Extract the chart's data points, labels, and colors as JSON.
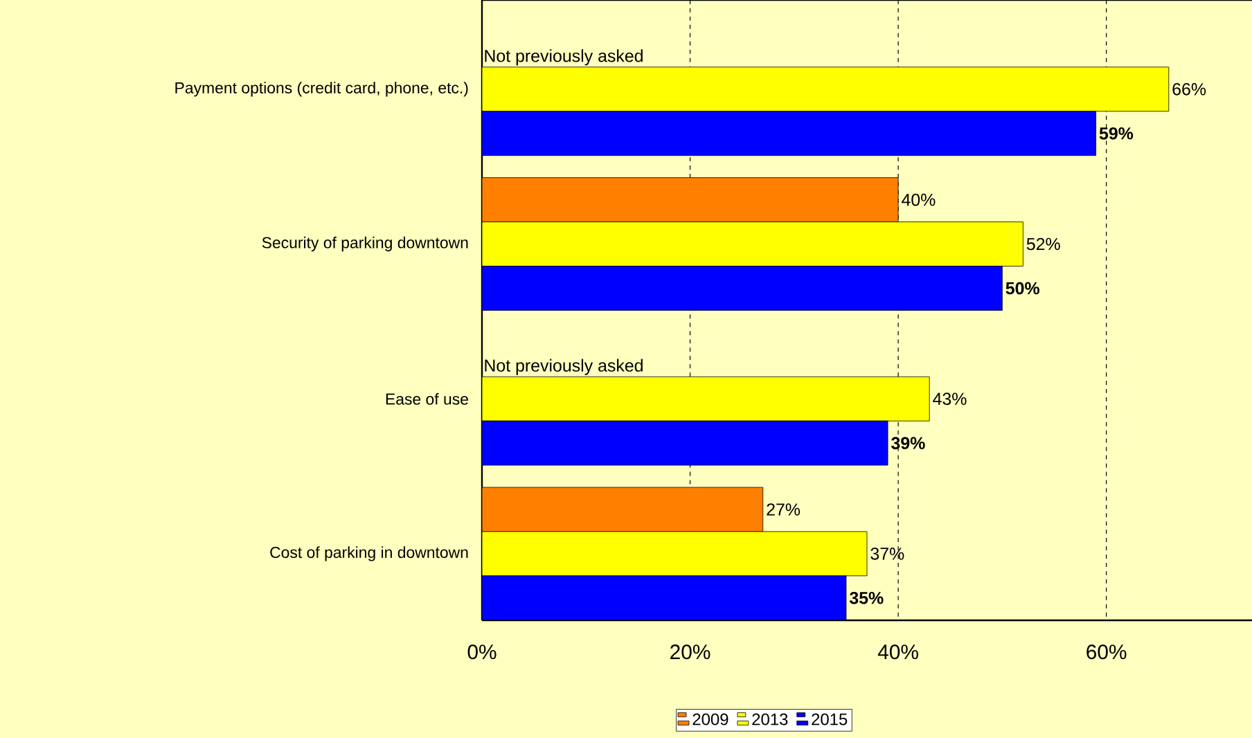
{
  "chart_data": {
    "type": "bar",
    "orientation": "horizontal",
    "categories": [
      "Payment options (credit card, phone, etc.)",
      "Security of parking downtown",
      "Ease of use",
      "Cost of parking in downtown"
    ],
    "series": [
      {
        "name": "2009",
        "color": "#ff8000",
        "values": [
          null,
          40,
          null,
          27
        ],
        "value_labels": [
          null,
          "40%",
          null,
          "27%"
        ]
      },
      {
        "name": "2013",
        "color": "#ffff00",
        "values": [
          66,
          52,
          43,
          37
        ],
        "value_labels": [
          "66%",
          "52%",
          "43%",
          "37%"
        ]
      },
      {
        "name": "2015",
        "color": "#0000ff",
        "values": [
          59,
          50,
          39,
          35
        ],
        "value_labels": [
          "**59%**",
          "**50%**",
          "**39%**",
          "**35%**"
        ]
      }
    ],
    "xlim": [
      0,
      74
    ],
    "xticks": [
      {
        "value": 0,
        "label": "0%"
      },
      {
        "value": 20,
        "label": "20%"
      },
      {
        "value": 40,
        "label": "40%"
      },
      {
        "value": 60,
        "label": "60%"
      }
    ],
    "grid": "x",
    "legend": "bottom",
    "annotations": [
      {
        "text": "Not previously asked",
        "x": 0,
        "y": "Payment options (credit card, phone, etc.)"
      },
      {
        "text": "Not previously asked",
        "x": 0,
        "y": "Ease of use"
      }
    ]
  }
}
